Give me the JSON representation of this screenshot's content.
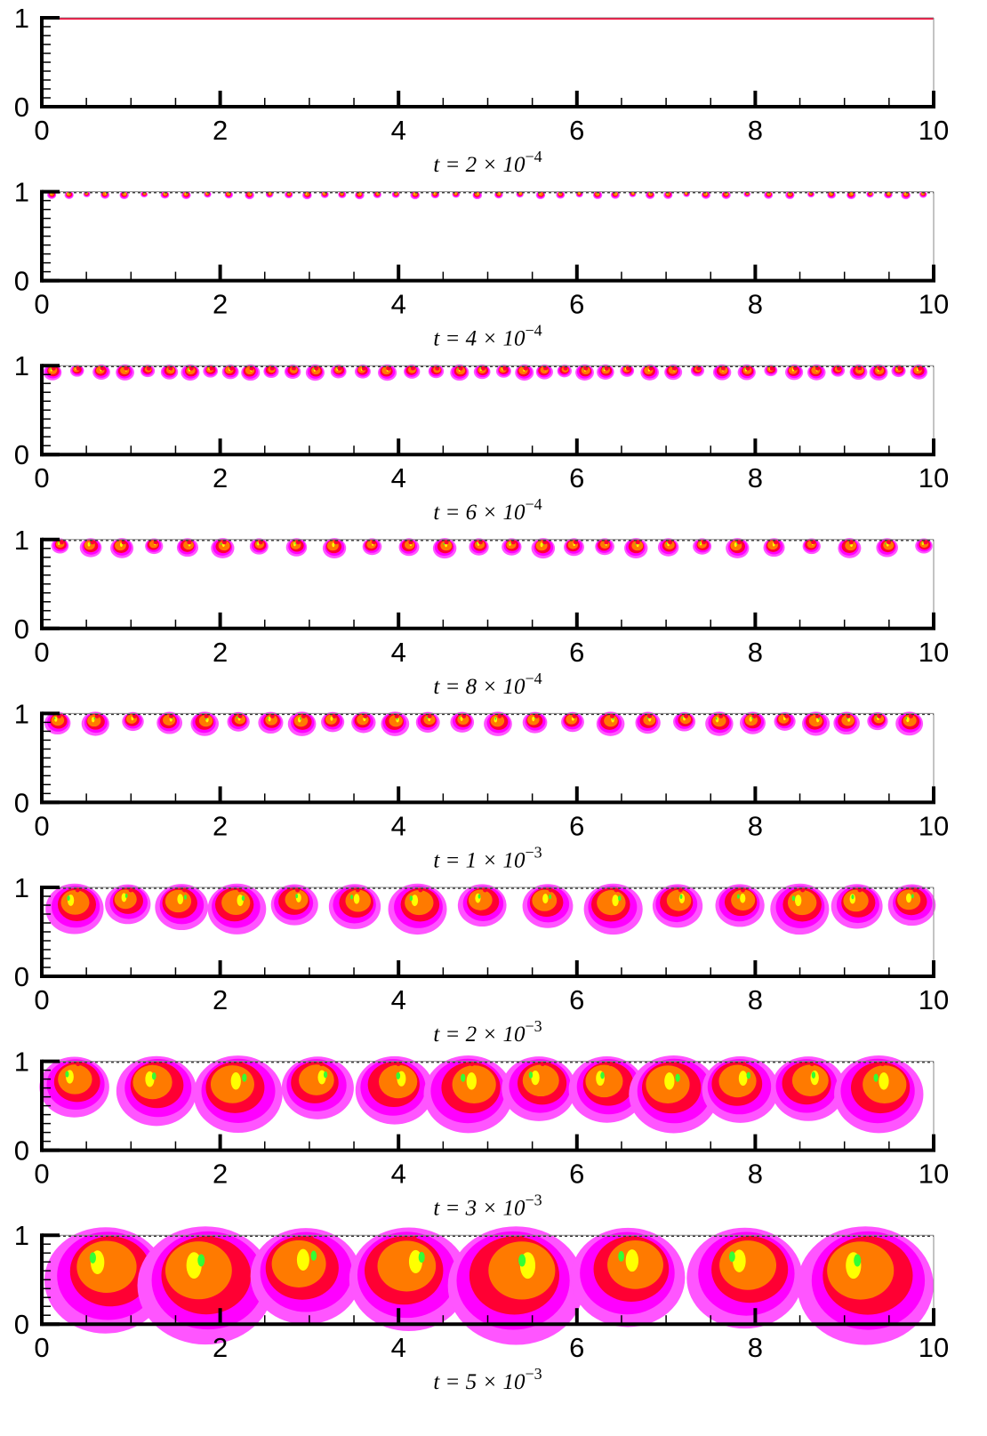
{
  "chart_data": [
    {
      "type": "contour",
      "caption": {
        "base": "t = 2 × 10",
        "exponent": "−4"
      },
      "xlim": [
        0,
        10
      ],
      "ylim": [
        0,
        1
      ],
      "xticks": [
        0,
        2,
        4,
        6,
        8,
        10
      ],
      "yticks": [
        0,
        1
      ],
      "colormap": [
        "#ff55ff",
        "#ff00ff",
        "#ff0033",
        "#ff7a00",
        "#ffff00",
        "#33ff33"
      ]
    },
    {
      "type": "contour",
      "caption": {
        "base": "t = 4 × 10",
        "exponent": "−4"
      },
      "xlim": [
        0,
        10
      ],
      "ylim": [
        0,
        1
      ],
      "xticks": [
        0,
        2,
        4,
        6,
        8,
        10
      ],
      "yticks": [
        0,
        1
      ],
      "colormap": [
        "#ff55ff",
        "#ff00ff",
        "#ff0033",
        "#ff7a00",
        "#ffff00",
        "#33ff33"
      ]
    },
    {
      "type": "contour",
      "caption": {
        "base": "t = 6 × 10",
        "exponent": "−4"
      },
      "xlim": [
        0,
        10
      ],
      "ylim": [
        0,
        1
      ],
      "xticks": [
        0,
        2,
        4,
        6,
        8,
        10
      ],
      "yticks": [
        0,
        1
      ],
      "colormap": [
        "#ff55ff",
        "#ff00ff",
        "#ff0033",
        "#ff7a00",
        "#ffff00",
        "#33ff33"
      ]
    },
    {
      "type": "contour",
      "caption": {
        "base": "t = 8 × 10",
        "exponent": "−4"
      },
      "xlim": [
        0,
        10
      ],
      "ylim": [
        0,
        1
      ],
      "xticks": [
        0,
        2,
        4,
        6,
        8,
        10
      ],
      "yticks": [
        0,
        1
      ],
      "colormap": [
        "#ff55ff",
        "#ff00ff",
        "#ff0033",
        "#ff7a00",
        "#ffff00",
        "#33ff33"
      ]
    },
    {
      "type": "contour",
      "caption": {
        "base": "t = 1 × 10",
        "exponent": "−3"
      },
      "xlim": [
        0,
        10
      ],
      "ylim": [
        0,
        1
      ],
      "xticks": [
        0,
        2,
        4,
        6,
        8,
        10
      ],
      "yticks": [
        0,
        1
      ],
      "colormap": [
        "#ff55ff",
        "#ff00ff",
        "#ff0033",
        "#ff7a00",
        "#ffff00",
        "#33ff33"
      ]
    },
    {
      "type": "contour",
      "caption": {
        "base": "t = 2 × 10",
        "exponent": "−3"
      },
      "xlim": [
        0,
        10
      ],
      "ylim": [
        0,
        1
      ],
      "xticks": [
        0,
        2,
        4,
        6,
        8,
        10
      ],
      "yticks": [
        0,
        1
      ],
      "colormap": [
        "#ff55ff",
        "#ff00ff",
        "#ff0033",
        "#ff7a00",
        "#ffff00",
        "#33ff33"
      ]
    },
    {
      "type": "contour",
      "caption": {
        "base": "t = 3 × 10",
        "exponent": "−3"
      },
      "xlim": [
        0,
        10
      ],
      "ylim": [
        0,
        1
      ],
      "xticks": [
        0,
        2,
        4,
        6,
        8,
        10
      ],
      "yticks": [
        0,
        1
      ],
      "colormap": [
        "#ff55ff",
        "#ff00ff",
        "#ff0033",
        "#ff7a00",
        "#ffff00",
        "#33ff33"
      ]
    },
    {
      "type": "contour",
      "caption": {
        "base": "t = 5 × 10",
        "exponent": "−3"
      },
      "xlim": [
        0,
        10
      ],
      "ylim": [
        0,
        1
      ],
      "xticks": [
        0,
        2,
        4,
        6,
        8,
        10
      ],
      "yticks": [
        0,
        1
      ],
      "colormap": [
        "#ff55ff",
        "#ff00ff",
        "#ff0033",
        "#ff7a00",
        "#ffff00",
        "#33ff33"
      ]
    }
  ]
}
